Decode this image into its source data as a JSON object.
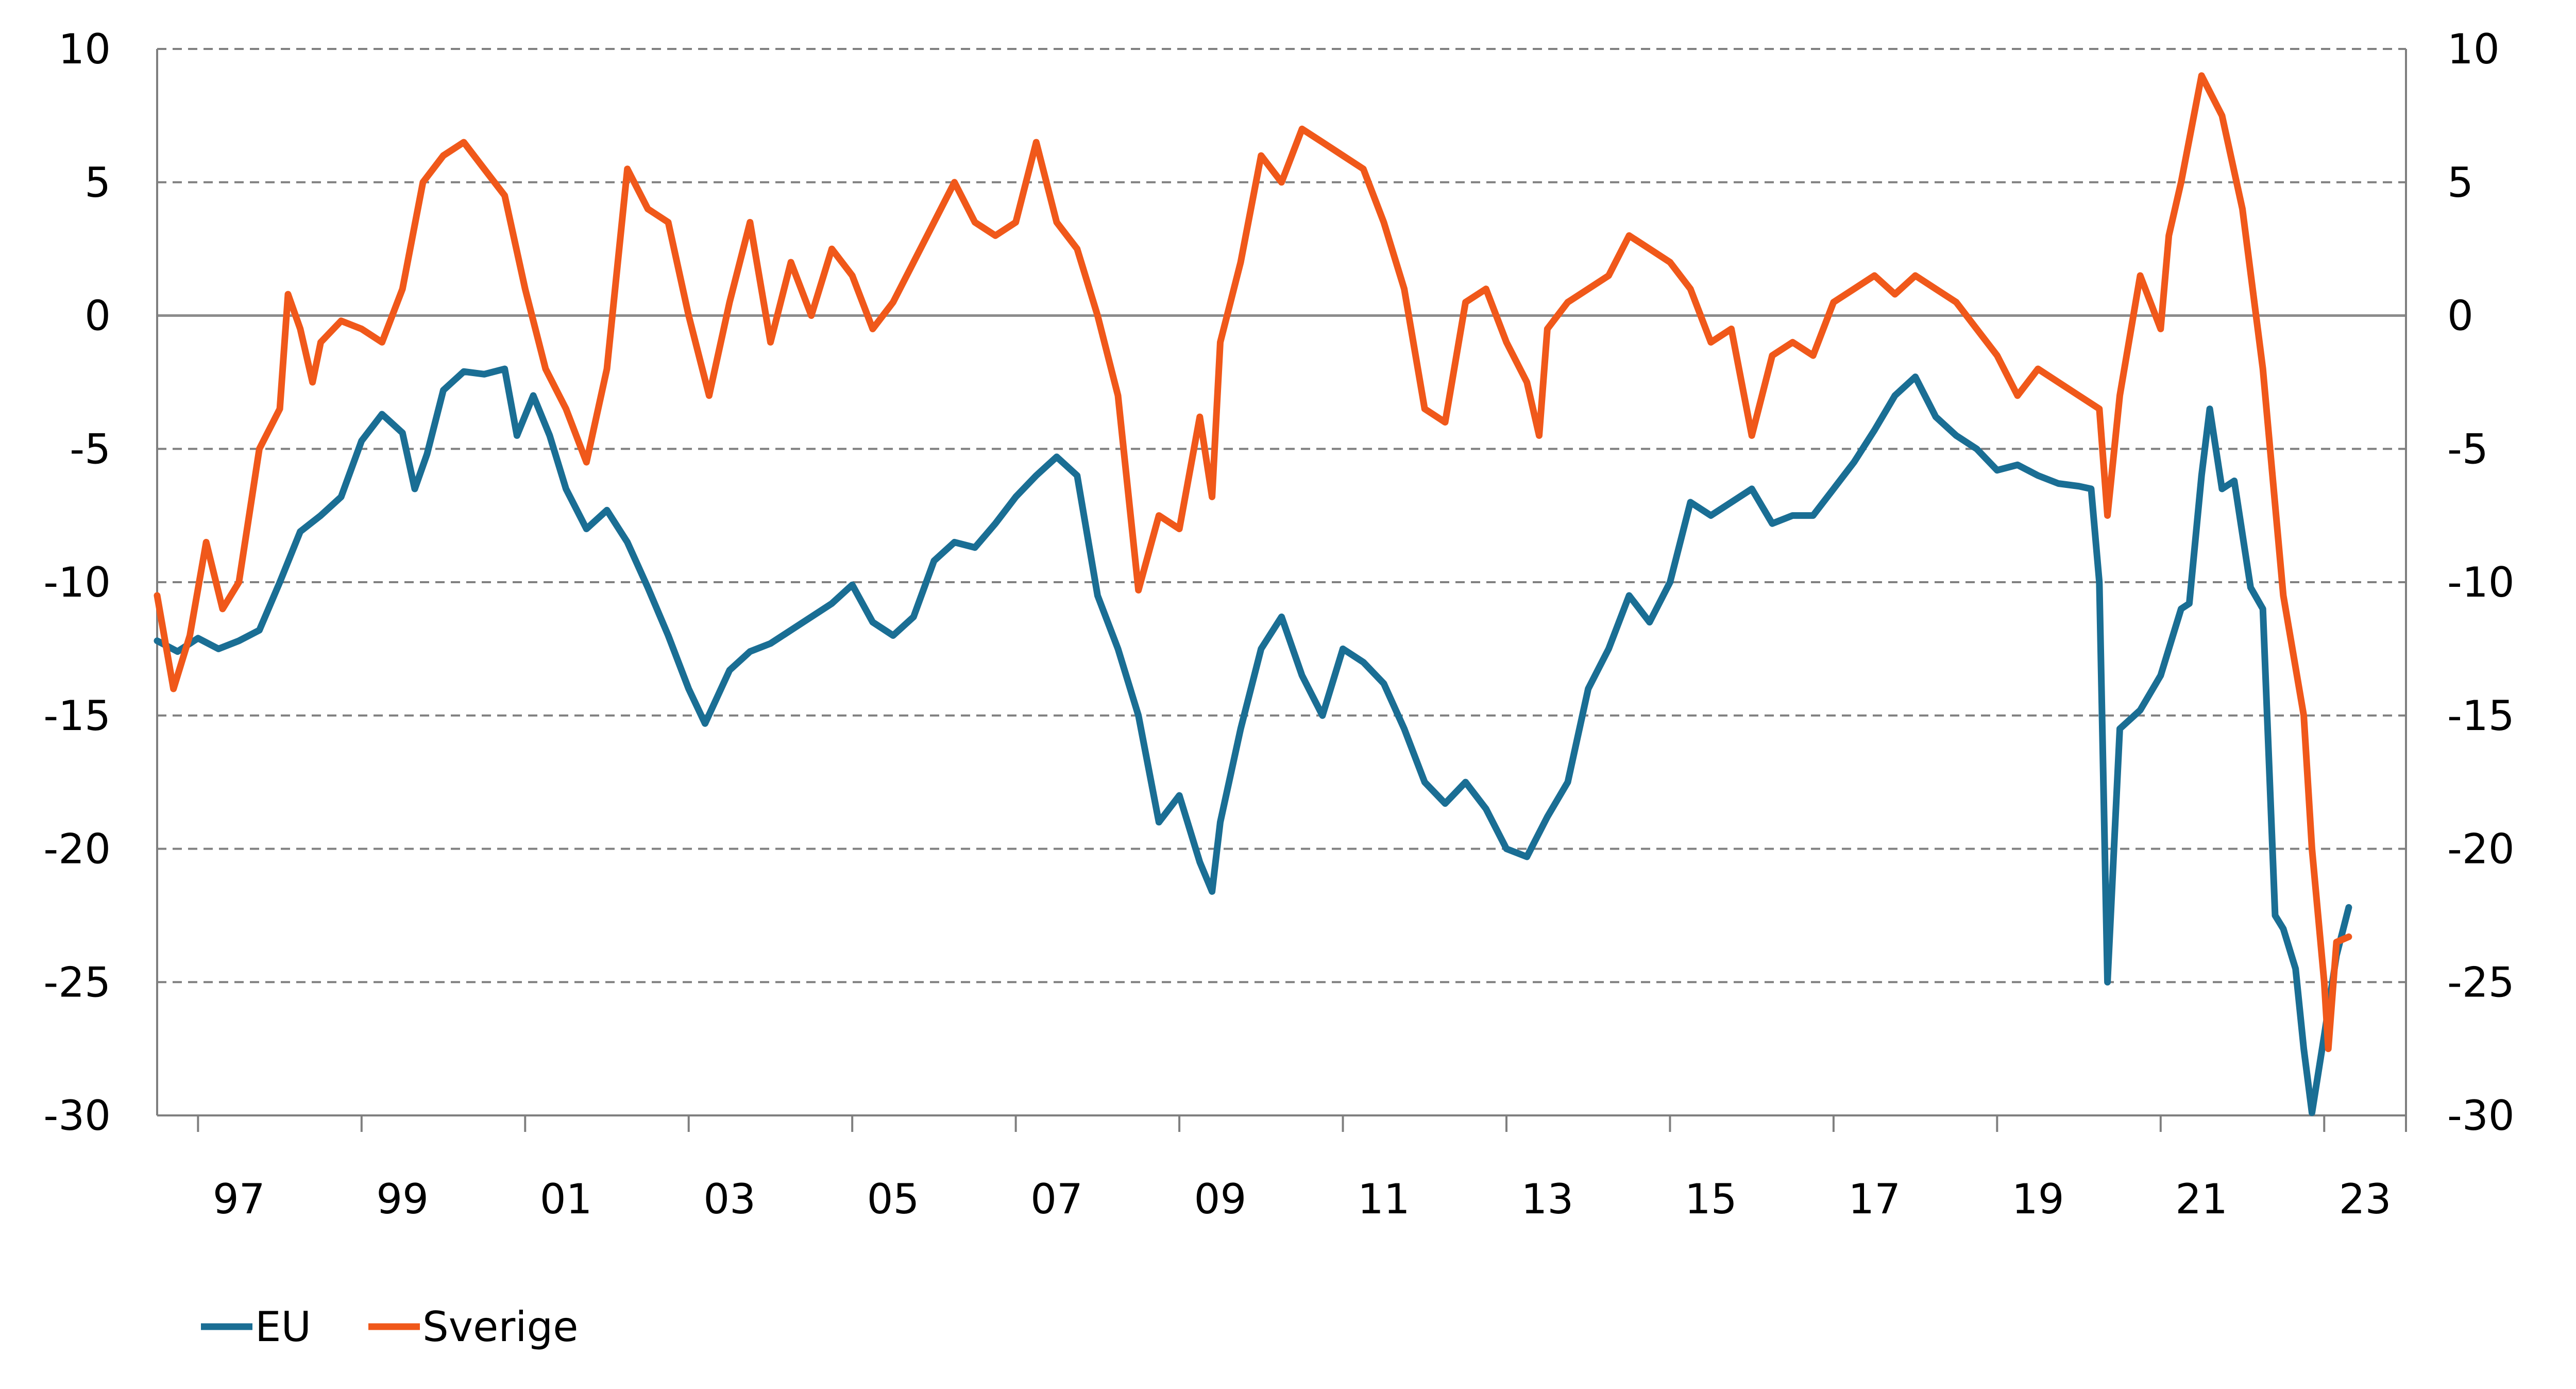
{
  "chart_data": {
    "type": "line",
    "title": "",
    "xlabel": "",
    "ylabel": "",
    "ylim": [
      -30,
      10
    ],
    "yticks": [
      "10",
      "5",
      "0",
      "-5",
      "-10",
      "-15",
      "-20",
      "-25",
      "-30"
    ],
    "secondary_yticks": [
      "10",
      "5",
      "0",
      "-5",
      "-10",
      "-15",
      "-20",
      "-25",
      "-30"
    ],
    "xlim": [
      1996.0,
      2023.5
    ],
    "xticks": [
      {
        "year": 1997,
        "label": "97"
      },
      {
        "year": 1999,
        "label": "99"
      },
      {
        "year": 2001,
        "label": "01"
      },
      {
        "year": 2003,
        "label": "03"
      },
      {
        "year": 2005,
        "label": "05"
      },
      {
        "year": 2007,
        "label": "07"
      },
      {
        "year": 2009,
        "label": "09"
      },
      {
        "year": 2011,
        "label": "11"
      },
      {
        "year": 2013,
        "label": "13"
      },
      {
        "year": 2015,
        "label": "15"
      },
      {
        "year": 2017,
        "label": "17"
      },
      {
        "year": 2019,
        "label": "19"
      },
      {
        "year": 2021,
        "label": "21"
      },
      {
        "year": 2023,
        "label": "23"
      }
    ],
    "grid": "horizontal dashed",
    "legend": "bottom-left",
    "series": [
      {
        "name": "EU",
        "color": "#1a6e94",
        "points": [
          [
            1996.0,
            -12.2
          ],
          [
            1996.25,
            -12.6
          ],
          [
            1996.5,
            -12.1
          ],
          [
            1996.75,
            -12.5
          ],
          [
            1997.0,
            -12.2
          ],
          [
            1997.25,
            -11.8
          ],
          [
            1997.5,
            -10.0
          ],
          [
            1997.75,
            -8.1
          ],
          [
            1998.0,
            -7.5
          ],
          [
            1998.25,
            -6.8
          ],
          [
            1998.5,
            -4.7
          ],
          [
            1998.75,
            -3.7
          ],
          [
            1999.0,
            -4.4
          ],
          [
            1999.15,
            -6.5
          ],
          [
            1999.3,
            -5.2
          ],
          [
            1999.5,
            -2.8
          ],
          [
            1999.75,
            -2.1
          ],
          [
            2000.0,
            -2.2
          ],
          [
            2000.25,
            -2.0
          ],
          [
            2000.4,
            -4.5
          ],
          [
            2000.6,
            -3.0
          ],
          [
            2000.8,
            -4.5
          ],
          [
            2001.0,
            -6.5
          ],
          [
            2001.25,
            -8.0
          ],
          [
            2001.5,
            -7.3
          ],
          [
            2001.75,
            -8.5
          ],
          [
            2002.0,
            -10.2
          ],
          [
            2002.25,
            -12.0
          ],
          [
            2002.5,
            -14.0
          ],
          [
            2002.7,
            -15.3
          ],
          [
            2003.0,
            -13.3
          ],
          [
            2003.25,
            -12.6
          ],
          [
            2003.5,
            -12.3
          ],
          [
            2003.75,
            -11.8
          ],
          [
            2004.0,
            -11.3
          ],
          [
            2004.25,
            -10.8
          ],
          [
            2004.5,
            -10.1
          ],
          [
            2004.75,
            -11.5
          ],
          [
            2005.0,
            -12.0
          ],
          [
            2005.25,
            -11.3
          ],
          [
            2005.5,
            -9.2
          ],
          [
            2005.75,
            -8.5
          ],
          [
            2006.0,
            -8.7
          ],
          [
            2006.25,
            -7.8
          ],
          [
            2006.5,
            -6.8
          ],
          [
            2006.75,
            -6.0
          ],
          [
            2007.0,
            -5.3
          ],
          [
            2007.25,
            -6.0
          ],
          [
            2007.5,
            -10.5
          ],
          [
            2007.75,
            -12.5
          ],
          [
            2008.0,
            -15.0
          ],
          [
            2008.25,
            -19.0
          ],
          [
            2008.5,
            -18.0
          ],
          [
            2008.75,
            -20.5
          ],
          [
            2008.9,
            -21.6
          ],
          [
            2009.0,
            -19.0
          ],
          [
            2009.25,
            -15.5
          ],
          [
            2009.5,
            -12.5
          ],
          [
            2009.75,
            -11.3
          ],
          [
            2010.0,
            -13.5
          ],
          [
            2010.25,
            -15.0
          ],
          [
            2010.5,
            -12.5
          ],
          [
            2010.75,
            -13.0
          ],
          [
            2011.0,
            -13.8
          ],
          [
            2011.25,
            -15.5
          ],
          [
            2011.5,
            -17.5
          ],
          [
            2011.75,
            -18.3
          ],
          [
            2012.0,
            -17.5
          ],
          [
            2012.25,
            -18.5
          ],
          [
            2012.5,
            -20.0
          ],
          [
            2012.75,
            -20.3
          ],
          [
            2013.0,
            -18.8
          ],
          [
            2013.25,
            -17.5
          ],
          [
            2013.5,
            -14.0
          ],
          [
            2013.75,
            -12.5
          ],
          [
            2014.0,
            -10.5
          ],
          [
            2014.25,
            -11.5
          ],
          [
            2014.5,
            -10.0
          ],
          [
            2014.75,
            -7.0
          ],
          [
            2015.0,
            -7.5
          ],
          [
            2015.25,
            -7.0
          ],
          [
            2015.5,
            -6.5
          ],
          [
            2015.75,
            -7.8
          ],
          [
            2016.0,
            -7.5
          ],
          [
            2016.25,
            -7.5
          ],
          [
            2016.5,
            -6.5
          ],
          [
            2016.75,
            -5.5
          ],
          [
            2017.0,
            -4.3
          ],
          [
            2017.25,
            -3.0
          ],
          [
            2017.5,
            -2.3
          ],
          [
            2017.75,
            -3.8
          ],
          [
            2018.0,
            -4.5
          ],
          [
            2018.25,
            -5.0
          ],
          [
            2018.5,
            -5.8
          ],
          [
            2018.75,
            -5.6
          ],
          [
            2019.0,
            -6.0
          ],
          [
            2019.25,
            -6.3
          ],
          [
            2019.5,
            -6.4
          ],
          [
            2019.65,
            -6.5
          ],
          [
            2019.75,
            -10.0
          ],
          [
            2019.85,
            -25.0
          ],
          [
            2020.0,
            -15.5
          ],
          [
            2020.25,
            -14.8
          ],
          [
            2020.5,
            -13.5
          ],
          [
            2020.75,
            -11.0
          ],
          [
            2020.85,
            -10.8
          ],
          [
            2021.0,
            -6.0
          ],
          [
            2021.1,
            -3.5
          ],
          [
            2021.25,
            -6.5
          ],
          [
            2021.4,
            -6.2
          ],
          [
            2021.6,
            -10.2
          ],
          [
            2021.75,
            -11.0
          ],
          [
            2021.9,
            -22.5
          ],
          [
            2022.0,
            -23.0
          ],
          [
            2022.15,
            -24.5
          ],
          [
            2022.25,
            -27.5
          ],
          [
            2022.35,
            -29.9
          ],
          [
            2022.5,
            -27.0
          ],
          [
            2022.65,
            -24.0
          ],
          [
            2022.8,
            -22.2
          ]
        ]
      },
      {
        "name": "Sverige",
        "color": "#f0581a",
        "points": [
          [
            1996.0,
            -10.5
          ],
          [
            1996.2,
            -14.0
          ],
          [
            1996.4,
            -12.0
          ],
          [
            1996.6,
            -8.5
          ],
          [
            1996.8,
            -11.0
          ],
          [
            1997.0,
            -10.0
          ],
          [
            1997.25,
            -5.0
          ],
          [
            1997.5,
            -3.5
          ],
          [
            1997.6,
            0.8
          ],
          [
            1997.75,
            -0.5
          ],
          [
            1997.9,
            -2.5
          ],
          [
            1998.0,
            -1.0
          ],
          [
            1998.25,
            -0.2
          ],
          [
            1998.5,
            -0.5
          ],
          [
            1998.75,
            -1.0
          ],
          [
            1999.0,
            1.0
          ],
          [
            1999.25,
            5.0
          ],
          [
            1999.5,
            6.0
          ],
          [
            1999.75,
            6.5
          ],
          [
            2000.0,
            5.5
          ],
          [
            2000.25,
            4.5
          ],
          [
            2000.5,
            1.0
          ],
          [
            2000.75,
            -2.0
          ],
          [
            2001.0,
            -3.5
          ],
          [
            2001.25,
            -5.5
          ],
          [
            2001.5,
            -2.0
          ],
          [
            2001.75,
            5.5
          ],
          [
            2002.0,
            4.0
          ],
          [
            2002.25,
            3.5
          ],
          [
            2002.5,
            0.0
          ],
          [
            2002.75,
            -3.0
          ],
          [
            2003.0,
            0.5
          ],
          [
            2003.25,
            3.5
          ],
          [
            2003.5,
            -1.0
          ],
          [
            2003.75,
            2.0
          ],
          [
            2004.0,
            0.0
          ],
          [
            2004.25,
            2.5
          ],
          [
            2004.5,
            1.5
          ],
          [
            2004.75,
            -0.5
          ],
          [
            2005.0,
            0.5
          ],
          [
            2005.25,
            2.0
          ],
          [
            2005.5,
            3.5
          ],
          [
            2005.75,
            5.0
          ],
          [
            2006.0,
            3.5
          ],
          [
            2006.25,
            3.0
          ],
          [
            2006.5,
            3.5
          ],
          [
            2006.75,
            6.5
          ],
          [
            2007.0,
            3.5
          ],
          [
            2007.25,
            2.5
          ],
          [
            2007.5,
            0.0
          ],
          [
            2007.75,
            -3.0
          ],
          [
            2008.0,
            -10.3
          ],
          [
            2008.25,
            -7.5
          ],
          [
            2008.5,
            -8.0
          ],
          [
            2008.75,
            -3.8
          ],
          [
            2008.9,
            -6.8
          ],
          [
            2009.0,
            -1.0
          ],
          [
            2009.25,
            2.0
          ],
          [
            2009.5,
            6.0
          ],
          [
            2009.75,
            5.0
          ],
          [
            2010.0,
            7.0
          ],
          [
            2010.25,
            6.5
          ],
          [
            2010.5,
            6.0
          ],
          [
            2010.75,
            5.5
          ],
          [
            2011.0,
            3.5
          ],
          [
            2011.25,
            1.0
          ],
          [
            2011.5,
            -3.5
          ],
          [
            2011.75,
            -4.0
          ],
          [
            2012.0,
            0.5
          ],
          [
            2012.25,
            1.0
          ],
          [
            2012.5,
            -1.0
          ],
          [
            2012.75,
            -2.5
          ],
          [
            2012.9,
            -4.5
          ],
          [
            2013.0,
            -0.5
          ],
          [
            2013.25,
            0.5
          ],
          [
            2013.5,
            1.0
          ],
          [
            2013.75,
            1.5
          ],
          [
            2014.0,
            3.0
          ],
          [
            2014.25,
            2.5
          ],
          [
            2014.5,
            2.0
          ],
          [
            2014.75,
            1.0
          ],
          [
            2015.0,
            -1.0
          ],
          [
            2015.25,
            -0.5
          ],
          [
            2015.5,
            -4.5
          ],
          [
            2015.75,
            -1.5
          ],
          [
            2016.0,
            -1.0
          ],
          [
            2016.25,
            -1.5
          ],
          [
            2016.5,
            0.5
          ],
          [
            2016.75,
            1.0
          ],
          [
            2017.0,
            1.5
          ],
          [
            2017.25,
            0.8
          ],
          [
            2017.5,
            1.5
          ],
          [
            2017.75,
            1.0
          ],
          [
            2018.0,
            0.5
          ],
          [
            2018.25,
            -0.5
          ],
          [
            2018.5,
            -1.5
          ],
          [
            2018.75,
            -3.0
          ],
          [
            2019.0,
            -2.0
          ],
          [
            2019.25,
            -2.5
          ],
          [
            2019.5,
            -3.0
          ],
          [
            2019.75,
            -3.5
          ],
          [
            2019.85,
            -7.5
          ],
          [
            2020.0,
            -3.0
          ],
          [
            2020.25,
            1.5
          ],
          [
            2020.5,
            -0.5
          ],
          [
            2020.6,
            3.0
          ],
          [
            2020.75,
            5.0
          ],
          [
            2021.0,
            9.0
          ],
          [
            2021.25,
            7.5
          ],
          [
            2021.5,
            4.0
          ],
          [
            2021.75,
            -2.0
          ],
          [
            2022.0,
            -10.5
          ],
          [
            2022.25,
            -15.0
          ],
          [
            2022.35,
            -20.0
          ],
          [
            2022.5,
            -25.0
          ],
          [
            2022.55,
            -27.5
          ],
          [
            2022.65,
            -23.5
          ],
          [
            2022.8,
            -23.3
          ]
        ]
      }
    ]
  }
}
